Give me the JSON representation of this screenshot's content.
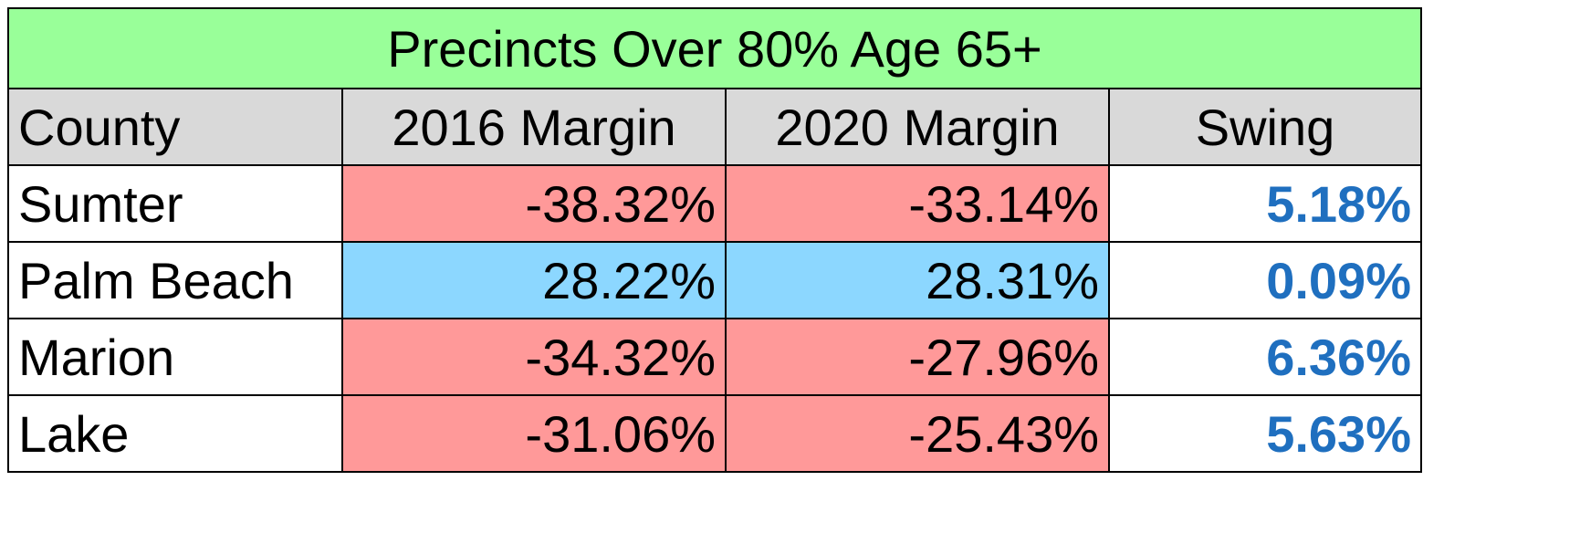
{
  "chart_data": {
    "type": "table",
    "title": "Precincts Over 80% Age 65+",
    "columns": [
      "County",
      "2016 Margin",
      "2020 Margin",
      "Swing"
    ],
    "rows": [
      {
        "county": "Sumter",
        "margin_2016": "-38.32%",
        "margin_2020": "-33.14%",
        "swing": "5.18%"
      },
      {
        "county": "Palm Beach",
        "margin_2016": "28.22%",
        "margin_2020": "28.31%",
        "swing": "0.09%"
      },
      {
        "county": "Marion",
        "margin_2016": "-34.32%",
        "margin_2020": "-27.96%",
        "swing": "6.36%"
      },
      {
        "county": "Lake",
        "margin_2016": "-31.06%",
        "margin_2020": "-25.43%",
        "swing": "5.63%"
      }
    ],
    "colors": {
      "title_bg": "#99ff99",
      "header_bg": "#d9d9d9",
      "negative_margin_bg": "#ff9999",
      "positive_margin_bg": "#8cd7ff",
      "swing_text": "#1f6fbf"
    }
  }
}
